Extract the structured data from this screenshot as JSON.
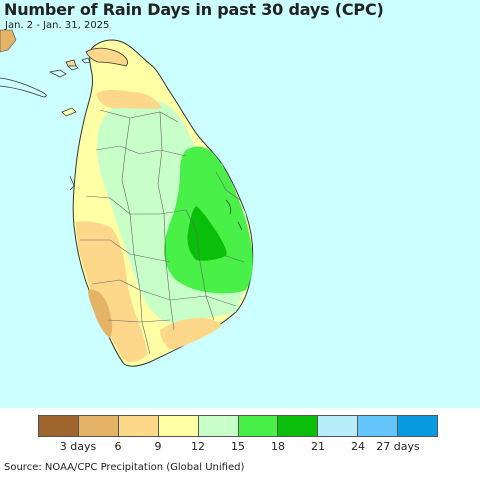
{
  "title": "Number of Rain Days in past 30 days (CPC)",
  "subtitle": "Jan. 2 - Jan. 31, 2025",
  "source": "Source: NOAA/CPC Precipitation (Global Unified)",
  "legend": {
    "colors": [
      "#a0642d",
      "#e5b366",
      "#fdd78a",
      "#ffffa6",
      "#c8ffc8",
      "#48f048",
      "#0abf0a",
      "#b8eefa",
      "#63c5fa",
      "#0a9ae0"
    ],
    "labels": [
      "3 days",
      "6",
      "9",
      "12",
      "15",
      "18",
      "21",
      "24",
      "27 days"
    ]
  },
  "map": {
    "ocean_color": "#ccffff",
    "region": "Sri Lanka"
  }
}
